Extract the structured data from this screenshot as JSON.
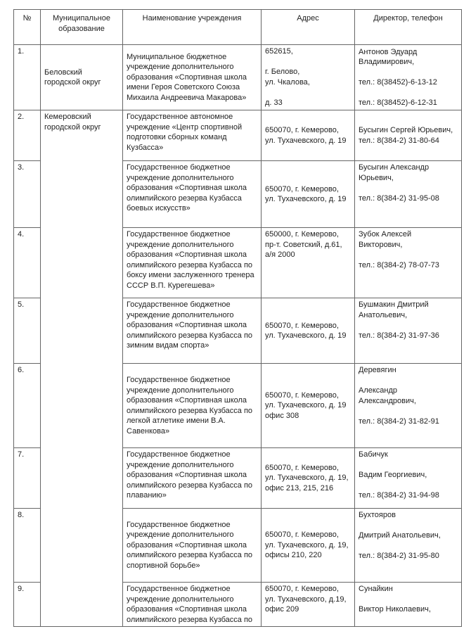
{
  "header": {
    "num": "№",
    "municipality": "Муниципальное\nобразование",
    "institution": "Наименование учреждения",
    "address": "Адрес",
    "director": "Директор, телефон"
  },
  "municipalities": [
    "Беловский\nгородской округ",
    "Кемеровский\nгородской округ"
  ],
  "rows": [
    {
      "num": "1.",
      "institution": "Муниципальное бюджетное\nучреждение дополнительного\nобразования «Спортивная школа\nимени Героя Советского Союза\nМихаила Андреевича Макарова»",
      "address": "652615,\n\nг. Белово,\nул. Чкалова,\n\nд. 33",
      "director": "Антонов Эдуард\nВладимирович,\n\nтел.: 8(38452)-6-13-12\n\nтел.: 8(38452)-6-12-31"
    },
    {
      "num": "2.",
      "institution": "Государственное автономное\nучреждение «Центр спортивной\nподготовки сборных команд\nКузбасса»",
      "address": "650070, г. Кемерово,\nул. Тухачевского, д. 19",
      "director": "Бусыгин Сергей Юрьевич,\nтел.: 8(384-2) 31-80-64"
    },
    {
      "num": "3.",
      "institution": "Государственное бюджетное\nучреждение дополнительного\nобразования «Спортивная школа\nолимпийского резерва Кузбасса\nбоевых искусств»",
      "address": "650070, г. Кемерово,\nул. Тухачевского, д. 19",
      "director": "Бусыгин Александр\nЮрьевич,\n\nтел.: 8(384-2) 31-95-08"
    },
    {
      "num": "4.",
      "institution": "Государственное бюджетное\nучреждение дополнительного\nобразования «Спортивная школа\nолимпийского резерва Кузбасса по\nбоксу имени заслуженного тренера\nСССР В.П. Курегешева»",
      "address": "650000, г. Кемерово,\nпр-т. Советский, д.61,\nа/я 2000",
      "director": "Зубок Алексей\nВикторович,\n\nтел.: 8(384-2) 78-07-73"
    },
    {
      "num": "5.",
      "institution": "Государственное бюджетное\nучреждение дополнительного\nобразования «Спортивная школа\nолимпийского резерва Кузбасса по\nзимним видам спорта»",
      "address": "650070, г. Кемерово,\nул. Тухачевского, д. 19",
      "director": "Бушмакин Дмитрий\nАнатольевич,\n\nтел.: 8(384-2) 31-97-36"
    },
    {
      "num": "6.",
      "institution": "Государственное бюджетное\nучреждение дополнительного\nобразования «Спортивная школа\nолимпийского резерва Кузбасса по\nлегкой атлетике имени В.А.\nСавенкова»",
      "address": "650070, г. Кемерово,\nул. Тухачевского, д. 19\nофис 308",
      "director": "Деревягин\n\nАлександр\nАлександрович,\n\nтел.: 8(384-2) 31-82-91"
    },
    {
      "num": "7.",
      "institution": "Государственное бюджетное\nучреждение дополнительного\nобразования «Спортивная школа\nолимпийского резерва Кузбасса по\nплаванию»",
      "address": "650070, г. Кемерово,\nул. Тухачевского, д. 19,\nофис 213, 215, 216",
      "director": "Бабичук\n\nВадим Георгиевич,\n\nтел.: 8(384-2) 31-94-98"
    },
    {
      "num": "8.",
      "institution": "Государственное бюджетное\nучреждение дополнительного\nобразования «Спортивная школа\nолимпийского резерва Кузбасса по\nспортивной борьбе»",
      "address": "650070, г. Кемерово,\nул. Тухачевского, д. 19,\nофисы 210, 220",
      "director": "Бухтояров\n\nДмитрий Анатольевич,\n\nтел.: 8(384-2) 31-95-80"
    },
    {
      "num": "9.",
      "institution": "Государственное бюджетное\nучреждение дополнительного\nобразования «Спортивная школа\nолимпийского резерва Кузбасса по",
      "address": "650070, г. Кемерово,\nул. Тухачевского, д.19,\nофис 209",
      "director": "Сунайкин\n\nВиктор Николаевич,"
    }
  ]
}
